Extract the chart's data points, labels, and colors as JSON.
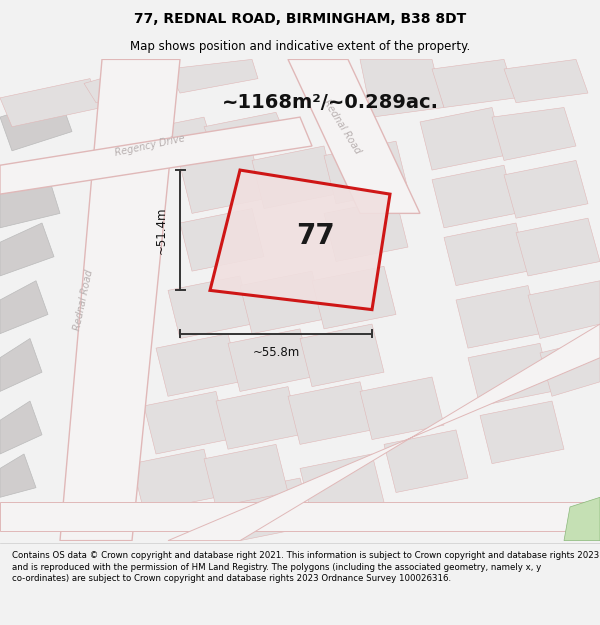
{
  "title_line1": "77, REDNAL ROAD, BIRMINGHAM, B38 8DT",
  "title_line2": "Map shows position and indicative extent of the property.",
  "area_text": "~1168m²/~0.289ac.",
  "property_number": "77",
  "dim_width": "~55.8m",
  "dim_height": "~51.4m",
  "footer_text": "Contains OS data © Crown copyright and database right 2021. This information is subject to Crown copyright and database rights 2023 and is reproduced with the permission of HM Land Registry. The polygons (including the associated geometry, namely x, y co-ordinates) are subject to Crown copyright and database rights 2023 Ordnance Survey 100026316.",
  "bg_color": "#f2f2f2",
  "map_bg": "#eeecec",
  "road_color": "#e0b8b8",
  "property_color": "#cc0000",
  "property_fill": "#f0e0e0",
  "dim_color": "#333333",
  "figure_width": 6.0,
  "figure_height": 6.25,
  "title_fs": 10,
  "subtitle_fs": 8.5,
  "footer_fs": 6.2,
  "area_fs": 14,
  "prop_label_fs": 20,
  "dim_fs": 8.5,
  "road_label_fs": 7
}
